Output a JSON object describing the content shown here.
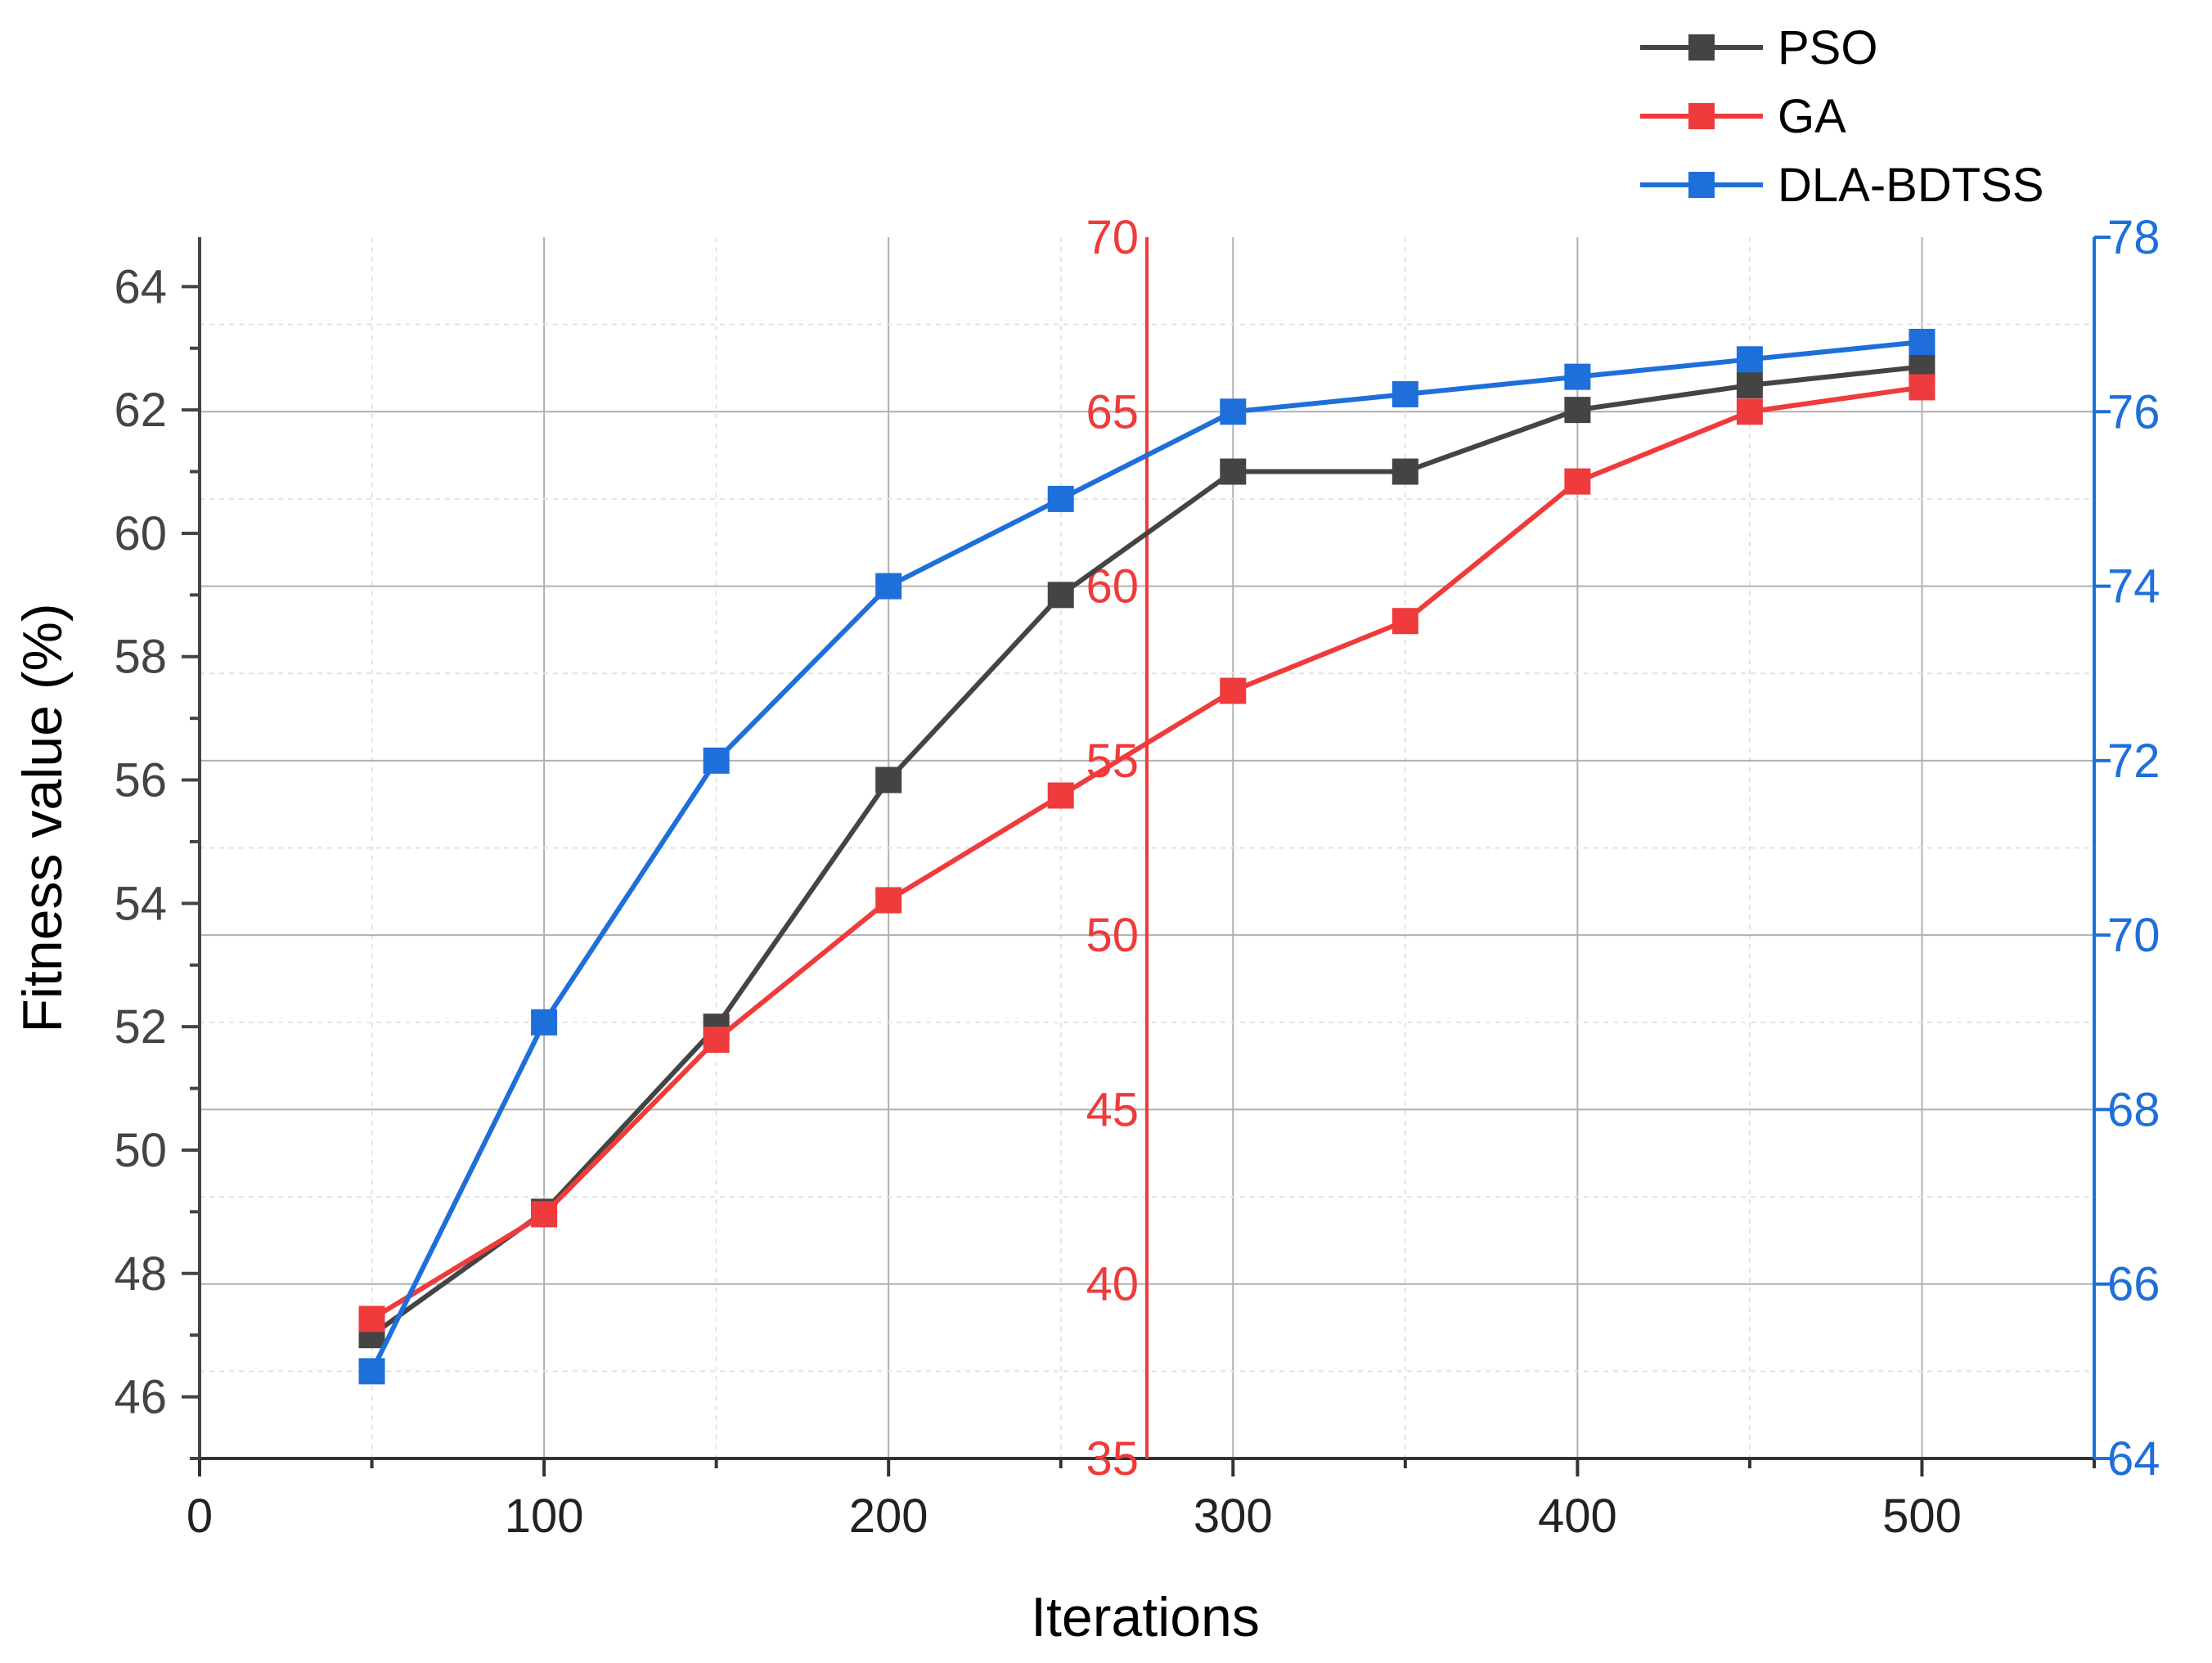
{
  "chart_data": {
    "type": "line",
    "title": "",
    "xlabel": "Iterations",
    "ylabel": "Fitness value (%)",
    "x": [
      50,
      100,
      150,
      200,
      250,
      300,
      350,
      400,
      450,
      500
    ],
    "xlim": [
      0,
      550
    ],
    "xticks": [
      0,
      100,
      200,
      300,
      400,
      500
    ],
    "grid": true,
    "legend_position": "top-right",
    "axes": {
      "left": {
        "ylim": [
          45,
          64.8
        ],
        "ticks": [
          46,
          48,
          50,
          52,
          54,
          56,
          58,
          60,
          62,
          64
        ],
        "color": "#444444"
      },
      "mid": {
        "ylim": [
          35,
          70
        ],
        "ticks": [
          35,
          40,
          45,
          50,
          55,
          60,
          65,
          70
        ],
        "color": "#ef3b3b",
        "position_x": 275
      },
      "right": {
        "ylim": [
          64,
          78
        ],
        "ticks": [
          64,
          66,
          68,
          70,
          72,
          74,
          76,
          78
        ],
        "color": "#1e6fd9"
      }
    },
    "series": [
      {
        "name": "PSO",
        "axis": "left",
        "color": "#444444",
        "values": [
          47.0,
          49.0,
          52.0,
          56.0,
          59.0,
          61.0,
          61.0,
          62.0,
          62.4,
          62.7
        ]
      },
      {
        "name": "GA",
        "axis": "mid",
        "color": "#ef3b3b",
        "values": [
          39.0,
          42.0,
          47.0,
          51.0,
          54.0,
          57.0,
          59.0,
          63.0,
          65.0,
          65.7
        ]
      },
      {
        "name": "DLA-BDTSS",
        "axis": "right",
        "color": "#1e6fd9",
        "values": [
          65.0,
          69.0,
          72.0,
          74.0,
          75.0,
          76.0,
          76.2,
          76.4,
          76.6,
          76.8
        ]
      }
    ]
  }
}
